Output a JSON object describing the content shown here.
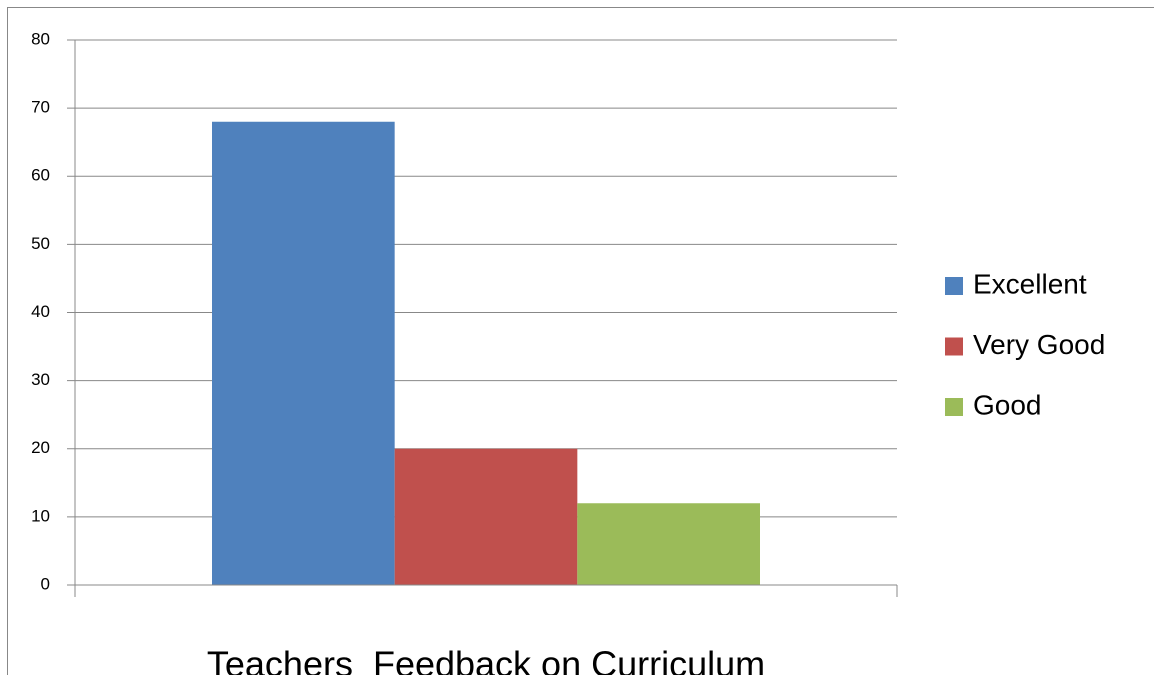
{
  "chart_data": {
    "type": "bar",
    "categories": [
      "Teachers  Feedback on Curriculum"
    ],
    "series": [
      {
        "name": "Excellent",
        "color": "#4f81bd",
        "values": [
          68
        ]
      },
      {
        "name": "Very Good",
        "color": "#c0504d",
        "values": [
          20
        ]
      },
      {
        "name": "Good",
        "color": "#9bbb59",
        "values": [
          12
        ]
      }
    ],
    "ylim": [
      0,
      80
    ],
    "yticks": [
      0,
      10,
      20,
      30,
      40,
      50,
      60,
      70,
      80
    ],
    "grid": true,
    "legend": "right"
  }
}
